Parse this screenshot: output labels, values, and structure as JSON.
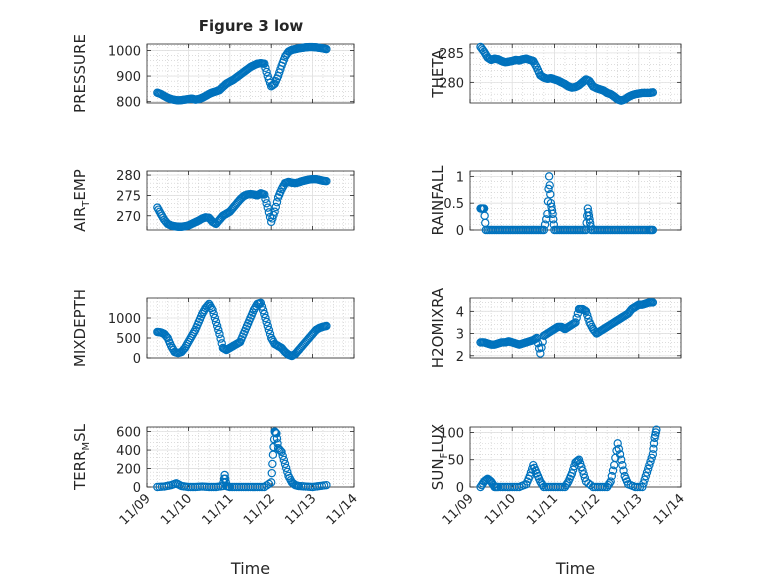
{
  "figure": {
    "title": "Figure 3 low",
    "marker_color": "#0072BD",
    "axis_color": "#262626",
    "grid_color": "#c8c8c8",
    "x_axis_label": "Time"
  },
  "chart_data": [
    {
      "type": "scatter",
      "title": "Figure 3 low",
      "xlabel": "",
      "ylabel": "PRESSURE",
      "xlim": [
        "11/09",
        "11/14"
      ],
      "ylim": [
        795,
        1025
      ],
      "yticks": [
        "800",
        "900",
        "1000"
      ],
      "ytick_values": [
        800,
        900,
        1000
      ],
      "xticks": [],
      "grid": true,
      "x": [
        "11/09 06:00",
        "11/09 08:00",
        "11/09 10:00",
        "11/09 12:00",
        "11/09 14:00",
        "11/09 16:00",
        "11/09 18:00",
        "11/09 20:00",
        "11/09 22:00",
        "11/10 00:00",
        "11/10 02:00",
        "11/10 04:00",
        "11/10 06:00",
        "11/10 08:00",
        "11/10 10:00",
        "11/10 12:00",
        "11/10 14:00",
        "11/10 16:00",
        "11/10 18:00",
        "11/10 20:00",
        "11/10 22:00",
        "11/11 00:00",
        "11/11 02:00",
        "11/11 04:00",
        "11/11 06:00",
        "11/11 08:00",
        "11/11 10:00",
        "11/11 12:00",
        "11/11 14:00",
        "11/11 16:00",
        "11/11 18:00",
        "11/11 20:00",
        "11/11 22:00",
        "11/12 00:00",
        "11/12 02:00",
        "11/12 04:00",
        "11/12 06:00",
        "11/12 08:00",
        "11/12 10:00",
        "11/12 12:00",
        "11/12 14:00",
        "11/12 16:00",
        "11/12 18:00",
        "11/12 20:00",
        "11/12 22:00",
        "11/13 00:00",
        "11/13 02:00",
        "11/13 04:00",
        "11/13 06:00",
        "11/13 08:00"
      ],
      "y": [
        835,
        830,
        822,
        815,
        810,
        807,
        805,
        806,
        808,
        810,
        812,
        808,
        810,
        815,
        822,
        830,
        836,
        840,
        845,
        858,
        870,
        878,
        885,
        895,
        905,
        915,
        925,
        935,
        942,
        948,
        950,
        948,
        900,
        860,
        870,
        900,
        940,
        975,
        995,
        1002,
        1005,
        1008,
        1010,
        1012,
        1013,
        1013,
        1012,
        1010,
        1008,
        1005
      ]
    },
    {
      "type": "scatter",
      "xlabel": "",
      "ylabel": "THETA",
      "xlim": [
        "11/09",
        "11/14"
      ],
      "ylim": [
        276.5,
        286.5
      ],
      "yticks": [
        "280",
        "285"
      ],
      "ytick_values": [
        280,
        285
      ],
      "xticks": [],
      "grid": true,
      "x": [
        "11/09 06:00",
        "11/09 08:00",
        "11/09 10:00",
        "11/09 12:00",
        "11/09 14:00",
        "11/09 16:00",
        "11/09 18:00",
        "11/09 20:00",
        "11/09 22:00",
        "11/10 00:00",
        "11/10 02:00",
        "11/10 04:00",
        "11/10 06:00",
        "11/10 08:00",
        "11/10 10:00",
        "11/10 12:00",
        "11/10 14:00",
        "11/10 16:00",
        "11/10 18:00",
        "11/10 20:00",
        "11/10 22:00",
        "11/11 00:00",
        "11/11 02:00",
        "11/11 04:00",
        "11/11 06:00",
        "11/11 08:00",
        "11/11 10:00",
        "11/11 12:00",
        "11/11 14:00",
        "11/11 16:00",
        "11/11 18:00",
        "11/11 20:00",
        "11/11 22:00",
        "11/12 00:00",
        "11/12 02:00",
        "11/12 04:00",
        "11/12 06:00",
        "11/12 08:00",
        "11/12 10:00",
        "11/12 12:00",
        "11/12 14:00",
        "11/12 16:00",
        "11/12 18:00",
        "11/12 20:00",
        "11/12 22:00",
        "11/13 00:00",
        "11/13 02:00",
        "11/13 04:00",
        "11/13 06:00",
        "11/13 08:00"
      ],
      "y": [
        286.0,
        285.2,
        284.2,
        283.8,
        284.0,
        283.9,
        283.6,
        283.4,
        283.5,
        283.6,
        283.8,
        283.7,
        283.9,
        284.0,
        283.8,
        283.6,
        282.5,
        281.2,
        280.8,
        280.6,
        280.7,
        280.5,
        280.3,
        280.0,
        279.7,
        279.3,
        279.1,
        279.2,
        279.5,
        280.0,
        280.5,
        280.2,
        279.3,
        279.0,
        278.8,
        278.6,
        278.2,
        278.0,
        277.6,
        277.1,
        276.9,
        277.1,
        277.5,
        277.8,
        278.0,
        278.1,
        278.2,
        278.2,
        278.2,
        278.3
      ]
    },
    {
      "type": "scatter",
      "xlabel": "",
      "ylabel": "AIR_TEMP",
      "xlim": [
        "11/09",
        "11/14"
      ],
      "ylim": [
        266.5,
        281
      ],
      "yticks": [
        "270",
        "275",
        "280"
      ],
      "ytick_values": [
        270,
        275,
        280
      ],
      "xticks": [],
      "grid": true,
      "x": [
        "11/09 06:00",
        "11/09 08:00",
        "11/09 10:00",
        "11/09 12:00",
        "11/09 14:00",
        "11/09 16:00",
        "11/09 18:00",
        "11/09 20:00",
        "11/09 22:00",
        "11/10 00:00",
        "11/10 02:00",
        "11/10 04:00",
        "11/10 06:00",
        "11/10 08:00",
        "11/10 10:00",
        "11/10 12:00",
        "11/10 14:00",
        "11/10 16:00",
        "11/10 18:00",
        "11/10 20:00",
        "11/10 22:00",
        "11/11 00:00",
        "11/11 02:00",
        "11/11 04:00",
        "11/11 06:00",
        "11/11 08:00",
        "11/11 10:00",
        "11/11 12:00",
        "11/11 14:00",
        "11/11 16:00",
        "11/11 18:00",
        "11/11 20:00",
        "11/11 22:00",
        "11/12 00:00",
        "11/12 02:00",
        "11/12 04:00",
        "11/12 06:00",
        "11/12 08:00",
        "11/12 10:00",
        "11/12 12:00",
        "11/12 14:00",
        "11/12 16:00",
        "11/12 18:00",
        "11/12 20:00",
        "11/12 22:00",
        "11/13 00:00",
        "11/13 02:00",
        "11/13 04:00",
        "11/13 06:00",
        "11/13 08:00"
      ],
      "y": [
        272.0,
        270.5,
        269.0,
        268.0,
        267.6,
        267.4,
        267.3,
        267.3,
        267.4,
        267.6,
        268.0,
        268.4,
        268.8,
        269.3,
        269.6,
        269.5,
        268.5,
        268.0,
        269.0,
        270.0,
        270.5,
        271.0,
        272.0,
        273.0,
        274.0,
        274.8,
        275.2,
        275.3,
        275.2,
        275.0,
        275.5,
        275.2,
        272.0,
        268.5,
        271.0,
        274.5,
        276.5,
        278.0,
        278.3,
        278.1,
        278.0,
        278.2,
        278.5,
        278.7,
        278.9,
        279.0,
        279.0,
        278.8,
        278.6,
        278.5
      ]
    },
    {
      "type": "scatter",
      "xlabel": "",
      "ylabel": "RAINFALL",
      "xlim": [
        "11/09",
        "11/14"
      ],
      "ylim": [
        0,
        1.1
      ],
      "yticks": [
        "0",
        "0.5",
        "1"
      ],
      "ytick_values": [
        0,
        0.5,
        1
      ],
      "xticks": [],
      "grid": true,
      "x": [
        "11/09 06:00",
        "11/09 07:00",
        "11/09 08:00",
        "11/09 09:00",
        "11/09 12:00",
        "11/09 15:00",
        "11/09 18:00",
        "11/09 21:00",
        "11/10 00:00",
        "11/10 03:00",
        "11/10 06:00",
        "11/10 09:00",
        "11/10 12:00",
        "11/10 15:00",
        "11/10 18:00",
        "11/10 20:00",
        "11/10 21:00",
        "11/10 22:00",
        "11/10 23:00",
        "11/11 00:00",
        "11/11 03:00",
        "11/11 06:00",
        "11/11 09:00",
        "11/11 12:00",
        "11/11 15:00",
        "11/11 18:00",
        "11/11 19:00",
        "11/11 20:00",
        "11/11 21:00",
        "11/12 00:00",
        "11/12 03:00",
        "11/12 06:00",
        "11/12 09:00",
        "11/12 12:00",
        "11/12 15:00",
        "11/12 18:00",
        "11/12 21:00",
        "11/13 00:00",
        "11/13 03:00",
        "11/13 06:00",
        "11/13 08:00"
      ],
      "y": [
        0.4,
        0.4,
        0.4,
        0,
        0,
        0,
        0,
        0,
        0,
        0,
        0,
        0,
        0,
        0,
        0,
        0.3,
        1.0,
        0.5,
        0.3,
        0,
        0,
        0,
        0,
        0,
        0,
        0,
        0.4,
        0.2,
        0,
        0,
        0,
        0,
        0,
        0,
        0,
        0,
        0,
        0,
        0,
        0,
        0
      ]
    },
    {
      "type": "scatter",
      "xlabel": "",
      "ylabel": "MIXDEPTH",
      "xlim": [
        "11/09",
        "11/14"
      ],
      "ylim": [
        0,
        1500
      ],
      "yticks": [
        "0",
        "500",
        "1000"
      ],
      "ytick_values": [
        0,
        500,
        1000
      ],
      "xticks": [],
      "grid": true,
      "x": [
        "11/09 06:00",
        "11/09 08:00",
        "11/09 10:00",
        "11/09 12:00",
        "11/09 14:00",
        "11/09 16:00",
        "11/09 18:00",
        "11/09 20:00",
        "11/09 22:00",
        "11/10 00:00",
        "11/10 02:00",
        "11/10 04:00",
        "11/10 06:00",
        "11/10 08:00",
        "11/10 10:00",
        "11/10 12:00",
        "11/10 14:00",
        "11/10 16:00",
        "11/10 18:00",
        "11/10 20:00",
        "11/10 22:00",
        "11/11 00:00",
        "11/11 02:00",
        "11/11 04:00",
        "11/11 06:00",
        "11/11 08:00",
        "11/11 10:00",
        "11/11 12:00",
        "11/11 14:00",
        "11/11 16:00",
        "11/11 18:00",
        "11/11 20:00",
        "11/11 22:00",
        "11/12 00:00",
        "11/12 02:00",
        "11/12 04:00",
        "11/12 06:00",
        "11/12 08:00",
        "11/12 10:00",
        "11/12 12:00",
        "11/12 14:00",
        "11/12 16:00",
        "11/12 18:00",
        "11/12 20:00",
        "11/12 22:00",
        "11/13 00:00",
        "11/13 02:00",
        "11/13 04:00",
        "11/13 06:00",
        "11/13 08:00"
      ],
      "y": [
        650,
        640,
        600,
        500,
        300,
        150,
        120,
        150,
        250,
        400,
        550,
        700,
        900,
        1100,
        1250,
        1350,
        1200,
        900,
        600,
        250,
        200,
        250,
        300,
        350,
        400,
        600,
        800,
        1000,
        1200,
        1350,
        1380,
        1100,
        800,
        500,
        350,
        300,
        250,
        150,
        80,
        50,
        100,
        200,
        300,
        400,
        500,
        600,
        700,
        750,
        780,
        800
      ]
    },
    {
      "type": "scatter",
      "xlabel": "",
      "ylabel": "H2OMIXRA",
      "xlim": [
        "11/09",
        "11/14"
      ],
      "ylim": [
        1.9,
        4.6
      ],
      "yticks": [
        "2",
        "3",
        "4"
      ],
      "ytick_values": [
        2,
        3,
        4
      ],
      "xticks": [],
      "grid": true,
      "x": [
        "11/09 06:00",
        "11/09 08:00",
        "11/09 10:00",
        "11/09 12:00",
        "11/09 14:00",
        "11/09 16:00",
        "11/09 18:00",
        "11/09 20:00",
        "11/09 22:00",
        "11/10 00:00",
        "11/10 02:00",
        "11/10 04:00",
        "11/10 06:00",
        "11/10 08:00",
        "11/10 10:00",
        "11/10 12:00",
        "11/10 14:00",
        "11/10 16:00",
        "11/10 18:00",
        "11/10 20:00",
        "11/10 22:00",
        "11/11 00:00",
        "11/11 02:00",
        "11/11 04:00",
        "11/11 06:00",
        "11/11 08:00",
        "11/11 10:00",
        "11/11 12:00",
        "11/11 14:00",
        "11/11 16:00",
        "11/11 18:00",
        "11/11 20:00",
        "11/11 22:00",
        "11/12 00:00",
        "11/12 02:00",
        "11/12 04:00",
        "11/12 06:00",
        "11/12 08:00",
        "11/12 10:00",
        "11/12 12:00",
        "11/12 14:00",
        "11/12 16:00",
        "11/12 18:00",
        "11/12 20:00",
        "11/12 22:00",
        "11/13 00:00",
        "11/13 02:00",
        "11/13 04:00",
        "11/13 06:00",
        "11/13 08:00"
      ],
      "y": [
        2.6,
        2.6,
        2.55,
        2.5,
        2.5,
        2.55,
        2.6,
        2.6,
        2.65,
        2.6,
        2.55,
        2.5,
        2.55,
        2.6,
        2.65,
        2.7,
        2.8,
        2.1,
        2.9,
        3.0,
        3.1,
        3.2,
        3.3,
        3.3,
        3.2,
        3.3,
        3.4,
        3.5,
        4.1,
        4.1,
        4.0,
        3.5,
        3.2,
        3.0,
        3.1,
        3.2,
        3.3,
        3.4,
        3.5,
        3.6,
        3.7,
        3.8,
        3.9,
        4.1,
        4.2,
        4.3,
        4.3,
        4.35,
        4.4,
        4.4
      ]
    },
    {
      "type": "scatter",
      "xlabel": "Time",
      "ylabel": "TERR_MSL",
      "xlim": [
        "11/09",
        "11/14"
      ],
      "ylim": [
        0,
        650
      ],
      "yticks": [
        "0",
        "200",
        "400",
        "600"
      ],
      "ytick_values": [
        0,
        200,
        400,
        600
      ],
      "xticks": [
        "11/09",
        "11/10",
        "11/11",
        "11/12",
        "11/13",
        "11/14"
      ],
      "grid": true,
      "x": [
        "11/09 06:00",
        "11/09 10:00",
        "11/09 14:00",
        "11/09 17:00",
        "11/09 20:00",
        "11/10 00:00",
        "11/10 04:00",
        "11/10 08:00",
        "11/10 12:00",
        "11/10 16:00",
        "11/10 20:00",
        "11/10 21:00",
        "11/10 22:00",
        "11/11 00:00",
        "11/11 04:00",
        "11/11 08:00",
        "11/11 12:00",
        "11/11 16:00",
        "11/11 20:00",
        "11/12 00:00",
        "11/12 01:00",
        "11/12 02:00",
        "11/12 03:00",
        "11/12 04:00",
        "11/12 06:00",
        "11/12 08:00",
        "11/12 10:00",
        "11/12 12:00",
        "11/12 14:00",
        "11/12 16:00",
        "11/12 20:00",
        "11/13 00:00",
        "11/13 04:00",
        "11/13 08:00"
      ],
      "y": [
        0,
        5,
        20,
        40,
        10,
        0,
        0,
        5,
        0,
        0,
        10,
        130,
        10,
        0,
        0,
        0,
        0,
        0,
        0,
        50,
        350,
        600,
        580,
        420,
        380,
        250,
        120,
        50,
        20,
        10,
        5,
        0,
        10,
        20
      ]
    },
    {
      "type": "scatter",
      "xlabel": "Time",
      "ylabel": "SUN_FLUX",
      "xlim": [
        "11/09",
        "11/14"
      ],
      "ylim": [
        0,
        110
      ],
      "yticks": [
        "0",
        "50",
        "100"
      ],
      "ytick_values": [
        0,
        50,
        100
      ],
      "xticks": [
        "11/09",
        "11/10",
        "11/11",
        "11/12",
        "11/13",
        "11/14"
      ],
      "grid": true,
      "x": [
        "11/09 06:00",
        "11/09 08:00",
        "11/09 10:00",
        "11/09 12:00",
        "11/09 14:00",
        "11/09 16:00",
        "11/09 20:00",
        "11/10 00:00",
        "11/10 04:00",
        "11/10 08:00",
        "11/10 10:00",
        "11/10 12:00",
        "11/10 14:00",
        "11/10 16:00",
        "11/10 18:00",
        "11/10 22:00",
        "11/11 02:00",
        "11/11 06:00",
        "11/11 08:00",
        "11/11 10:00",
        "11/11 12:00",
        "11/11 14:00",
        "11/11 16:00",
        "11/11 18:00",
        "11/11 22:00",
        "11/12 02:00",
        "11/12 06:00",
        "11/12 08:00",
        "11/12 10:00",
        "11/12 12:00",
        "11/12 14:00",
        "11/12 16:00",
        "11/12 18:00",
        "11/12 22:00",
        "11/13 02:00",
        "11/13 04:00",
        "11/13 06:00",
        "11/13 08:00",
        "11/13 09:00",
        "11/13 10:00"
      ],
      "y": [
        0,
        10,
        15,
        10,
        0,
        0,
        0,
        0,
        0,
        5,
        20,
        40,
        25,
        10,
        0,
        0,
        0,
        0,
        10,
        25,
        45,
        50,
        30,
        10,
        0,
        0,
        0,
        10,
        40,
        80,
        50,
        20,
        5,
        0,
        0,
        20,
        40,
        60,
        90,
        105
      ]
    }
  ]
}
